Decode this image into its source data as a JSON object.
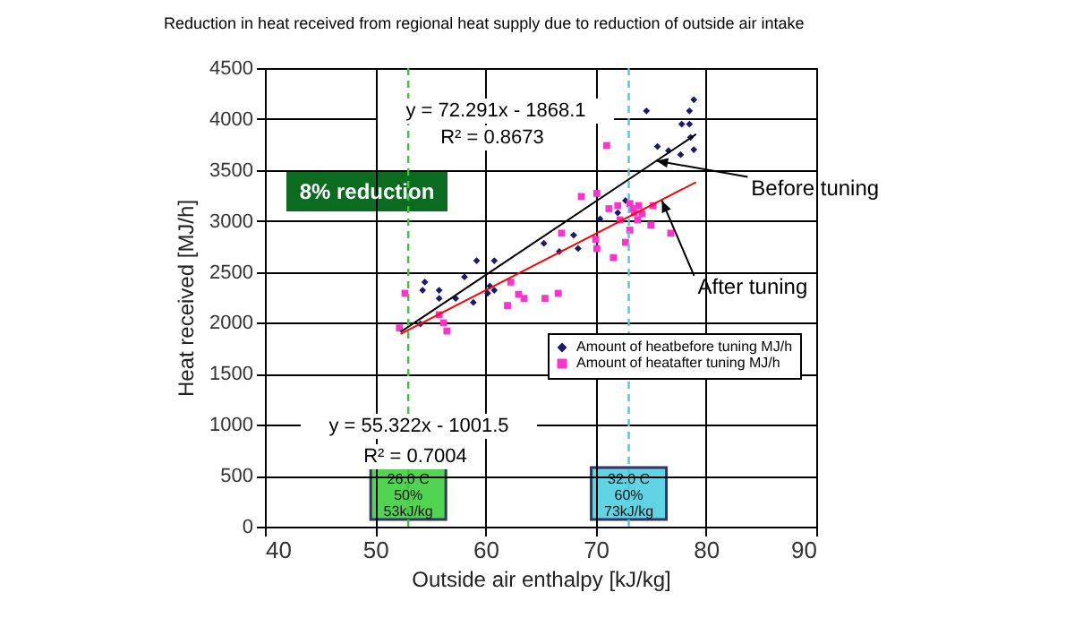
{
  "chart_data": {
    "type": "scatter",
    "title": "Reduction in heat received from regional heat supply due to reduction of outside air intake",
    "xlabel": "Outside air enthalpy [kJ/kg]",
    "ylabel": "Heat received [MJ/h]",
    "xlim": [
      40,
      90
    ],
    "xticks": [
      40,
      50,
      60,
      70,
      80,
      90
    ],
    "ylim": [
      0,
      4500
    ],
    "yticks": [
      0,
      500,
      1000,
      1500,
      2000,
      2500,
      3000,
      3500,
      4000,
      4500
    ],
    "grid": true,
    "legend": "right",
    "series": [
      {
        "name": "Amount of heatbefore tuning MJ/h",
        "color": "#1a1a6e",
        "marker": "diamond",
        "x": [
          78.9,
          74.6,
          78.5,
          77.8,
          78.5,
          78.6,
          75.6,
          76.6,
          77.7,
          78.9,
          72.7,
          72.0,
          70.4,
          65.3,
          66.7,
          68.0,
          68.4,
          59.2,
          60.8,
          58.1,
          54.5,
          54.3,
          55.8,
          55.8,
          57.3,
          60.4,
          60.2,
          58.9,
          54.1,
          60.8
        ],
        "values": [
          4190,
          4080,
          4080,
          3950,
          3950,
          3820,
          3730,
          3690,
          3650,
          3700,
          3200,
          3080,
          3020,
          2780,
          2700,
          2860,
          2730,
          2610,
          2610,
          2450,
          2400,
          2320,
          2320,
          2240,
          2240,
          2360,
          2290,
          2200,
          1990,
          2320
        ]
      },
      {
        "name": "Amount of heatafter tuning MJ/h",
        "color": "#ff33cc",
        "marker": "square",
        "x": [
          52.7,
          52.2,
          55.8,
          56.2,
          56.5,
          62.3,
          63.0,
          63.5,
          62.0,
          65.4,
          66.6,
          66.9,
          68.7,
          70.1,
          71.0,
          70.0,
          70.1,
          71.2,
          71.6,
          72.0,
          72.2,
          73.1,
          73.3,
          73.5,
          72.7,
          73.1,
          73.8,
          73.9,
          74.2,
          75.0,
          75.2,
          76.8
        ],
        "values": [
          2290,
          1950,
          2080,
          2000,
          1920,
          2400,
          2280,
          2240,
          2170,
          2240,
          2290,
          2880,
          3240,
          3270,
          3740,
          2820,
          2730,
          3120,
          2640,
          3150,
          3010,
          3170,
          3120,
          3080,
          2790,
          2910,
          3010,
          3150,
          3070,
          2960,
          3150,
          2880
        ]
      },
      {
        "type": "line",
        "color": "#000000",
        "x": [
          52.3,
          79.1
        ],
        "values": [
          1910,
          3850
        ]
      },
      {
        "type": "line",
        "color": "#ff0000",
        "x": [
          52.3,
          79.1
        ],
        "values": [
          1890,
          3380
        ]
      }
    ],
    "ref_lines": [
      {
        "axis": "x",
        "value": 53,
        "label": "26.0 C\n50%\n53kJ/kg",
        "color": "#33cc33",
        "line_style": "dashed"
      },
      {
        "axis": "x",
        "value": 73,
        "label": "32.0 C\n60%\n73kJ/kg",
        "color": "#44ccdd",
        "line_style": "dashed"
      }
    ],
    "annotations": [
      "y = 72.291x - 1868.1",
      "R² = 0.8673",
      "8% reduction",
      {
        "text": "Before tuning",
        "x": 75.5,
        "y": 3590
      },
      {
        "text": "After tuning",
        "x": 76,
        "y": 3200
      },
      "y = 55.322x - 1001.5",
      "R² = 0.7004"
    ]
  }
}
